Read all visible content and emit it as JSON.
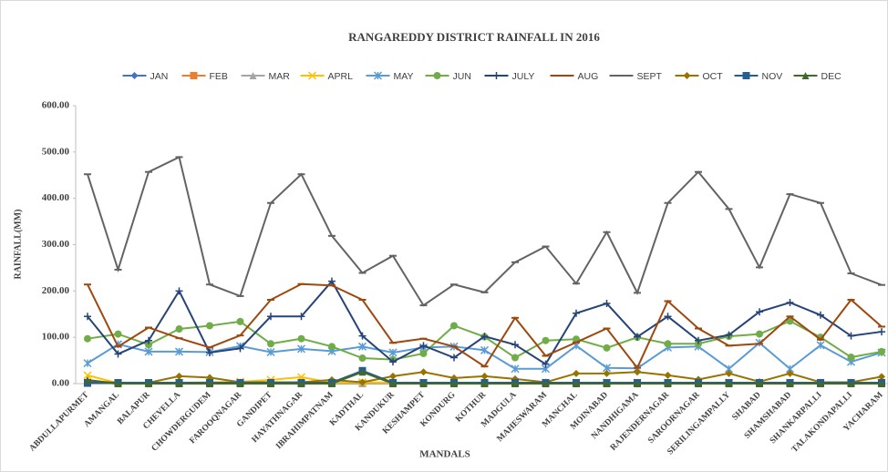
{
  "chart_data": {
    "type": "line",
    "title": "RANGAREDDY DISTRICT RAINFALL IN 2016",
    "x_label": "MANDALS",
    "y_label": "RAINFALL(MM)",
    "categories": [
      "ABDULLAPURMET",
      "AMANGAL",
      "BALAPUR",
      "CHEVELLA",
      "CHOWDERGUDEM",
      "FAROOQNAGAR",
      "GANDIPET",
      "HAYATHNAGAR",
      "IBRAHIMPATNAM",
      "KADTHAL",
      "KANDUKUR",
      "KESHAMPET",
      "KONDURG",
      "KOTHUR",
      "MADGULA",
      "MAHESWARAM",
      "MANCHAL",
      "MOINABAD",
      "NANDHIGAMA",
      "RAJENDERNAGAR",
      "SAROORNAGAR",
      "SERILINGAMPALLY",
      "SHABAD",
      "SHAMSHABAD",
      "SHANKARPALLI",
      "TALAKONDAPALLI",
      "YACHARAM"
    ],
    "ylim": [
      0,
      600
    ],
    "yticks": [
      {
        "value": 0,
        "label": "0.00"
      },
      {
        "value": 100,
        "label": "100.00"
      },
      {
        "value": 200,
        "label": "200.00"
      },
      {
        "value": 300,
        "label": "300.00"
      },
      {
        "value": 400,
        "label": "400.00"
      },
      {
        "value": 500,
        "label": "500.00"
      },
      {
        "value": 600,
        "label": "600.00"
      }
    ],
    "series": [
      {
        "name": "JAN",
        "color": "#4472c4",
        "marker": "diamond",
        "values": [
          0,
          0,
          0,
          0,
          0,
          0,
          0,
          0,
          0,
          0,
          0,
          0,
          0,
          0,
          0,
          0,
          0,
          0,
          0,
          0,
          0,
          0,
          0,
          0,
          0,
          0,
          0
        ]
      },
      {
        "name": "FEB",
        "color": "#ed7d31",
        "marker": "square",
        "values": [
          0,
          0,
          0,
          0,
          0,
          0,
          0,
          0,
          0,
          0,
          0,
          0,
          0,
          0,
          0,
          0,
          0,
          0,
          0,
          0,
          0,
          0,
          0,
          0,
          0,
          0,
          0
        ]
      },
      {
        "name": "MAR",
        "color": "#a5a5a5",
        "marker": "triangle",
        "values": [
          0,
          0,
          0,
          0,
          0,
          0,
          0,
          0,
          0,
          0,
          0,
          0,
          0,
          0,
          0,
          0,
          0,
          0,
          0,
          0,
          0,
          0,
          0,
          0,
          0,
          0,
          0
        ]
      },
      {
        "name": "APRL",
        "color": "#ffc000",
        "marker": "x",
        "values": [
          18,
          1,
          1,
          2,
          3,
          4,
          8,
          14,
          2,
          3,
          2,
          2,
          2,
          1,
          2,
          2,
          2,
          2,
          2,
          1,
          2,
          2,
          2,
          2,
          2,
          2,
          2
        ]
      },
      {
        "name": "MAY",
        "color": "#5b9bd5",
        "marker": "star",
        "values": [
          44,
          85,
          69,
          69,
          68,
          81,
          68,
          75,
          70,
          80,
          67,
          78,
          80,
          72,
          32,
          32,
          82,
          34,
          33,
          78,
          80,
          32,
          88,
          32,
          83,
          47,
          67
        ]
      },
      {
        "name": "JUN",
        "color": "#70ad47",
        "marker": "circle",
        "values": [
          97,
          107,
          84,
          118,
          125,
          134,
          86,
          97,
          80,
          55,
          52,
          65,
          125,
          101,
          56,
          93,
          96,
          77,
          100,
          86,
          86,
          102,
          107,
          135,
          100,
          57,
          69
        ]
      },
      {
        "name": "JULY",
        "color": "#264478",
        "marker": "plus",
        "values": [
          145,
          64,
          93,
          200,
          67,
          76,
          145,
          145,
          221,
          103,
          47,
          82,
          56,
          102,
          84,
          42,
          152,
          173,
          101,
          145,
          93,
          105,
          155,
          175,
          148,
          103,
          112
        ]
      },
      {
        "name": "AUG",
        "color": "#9e480e",
        "marker": "dash",
        "values": [
          214,
          80,
          121,
          98,
          78,
          104,
          181,
          215,
          212,
          181,
          88,
          97,
          80,
          37,
          142,
          60,
          89,
          119,
          34,
          178,
          119,
          82,
          86,
          145,
          95,
          181,
          123
        ]
      },
      {
        "name": "SEPT",
        "color": "#636363",
        "marker": "dash",
        "values": [
          452,
          246,
          457,
          489,
          214,
          189,
          390,
          452,
          319,
          239,
          276,
          169,
          214,
          197,
          262,
          296,
          216,
          327,
          196,
          390,
          457,
          377,
          251,
          409,
          390,
          238,
          213
        ]
      },
      {
        "name": "OCT",
        "color": "#997300",
        "marker": "diamond",
        "values": [
          5,
          2,
          2,
          16,
          13,
          3,
          3,
          3,
          8,
          3,
          16,
          25,
          12,
          16,
          10,
          3,
          22,
          22,
          25,
          18,
          9,
          22,
          4,
          22,
          3,
          3,
          15
        ]
      },
      {
        "name": "NOV",
        "color": "#255e91",
        "marker": "square",
        "values": [
          2,
          2,
          2,
          2,
          2,
          2,
          2,
          2,
          2,
          28,
          2,
          2,
          2,
          2,
          2,
          2,
          2,
          2,
          2,
          2,
          2,
          2,
          2,
          2,
          2,
          2,
          2
        ]
      },
      {
        "name": "DEC",
        "color": "#43682b",
        "marker": "triangle",
        "values": [
          8,
          0,
          0,
          0,
          0,
          0,
          0,
          0,
          0,
          25,
          0,
          0,
          0,
          0,
          0,
          0,
          0,
          0,
          0,
          0,
          0,
          0,
          0,
          0,
          0,
          0,
          0
        ]
      }
    ]
  }
}
